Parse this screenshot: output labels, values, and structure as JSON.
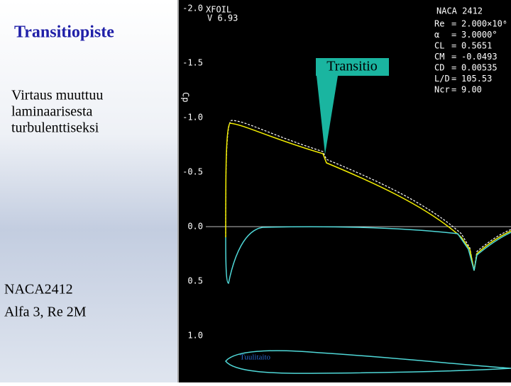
{
  "slide": {
    "title": "Transitiopiste",
    "body": [
      "Virtaus muuttuu",
      "laminaarisesta",
      "turbulenttiseksi"
    ],
    "caption": [
      "NACA2412",
      "Alfa 3, Re 2M"
    ],
    "callout": "Transitio"
  },
  "plot": {
    "program": "XFOIL",
    "version": "V 6.93",
    "airfoil": "NACA 2412",
    "y_axis_label": "Cp",
    "yticks": [
      "-2.0",
      "-1.5",
      "-1.0",
      "-0.5",
      "0.0",
      "0.5",
      "1.0"
    ],
    "params": [
      {
        "name": "Re",
        "value": "2.000×10⁶"
      },
      {
        "name": "α",
        "value": "3.0000°"
      },
      {
        "name": "CL",
        "value": "0.5651"
      },
      {
        "name": "CM",
        "value": "-0.0493"
      },
      {
        "name": "CD",
        "value": "0.00535"
      },
      {
        "name": "L/D",
        "value": "105.53"
      },
      {
        "name": "Ncr",
        "value": "9.00"
      }
    ],
    "watermark": "Tuulitaito"
  }
}
